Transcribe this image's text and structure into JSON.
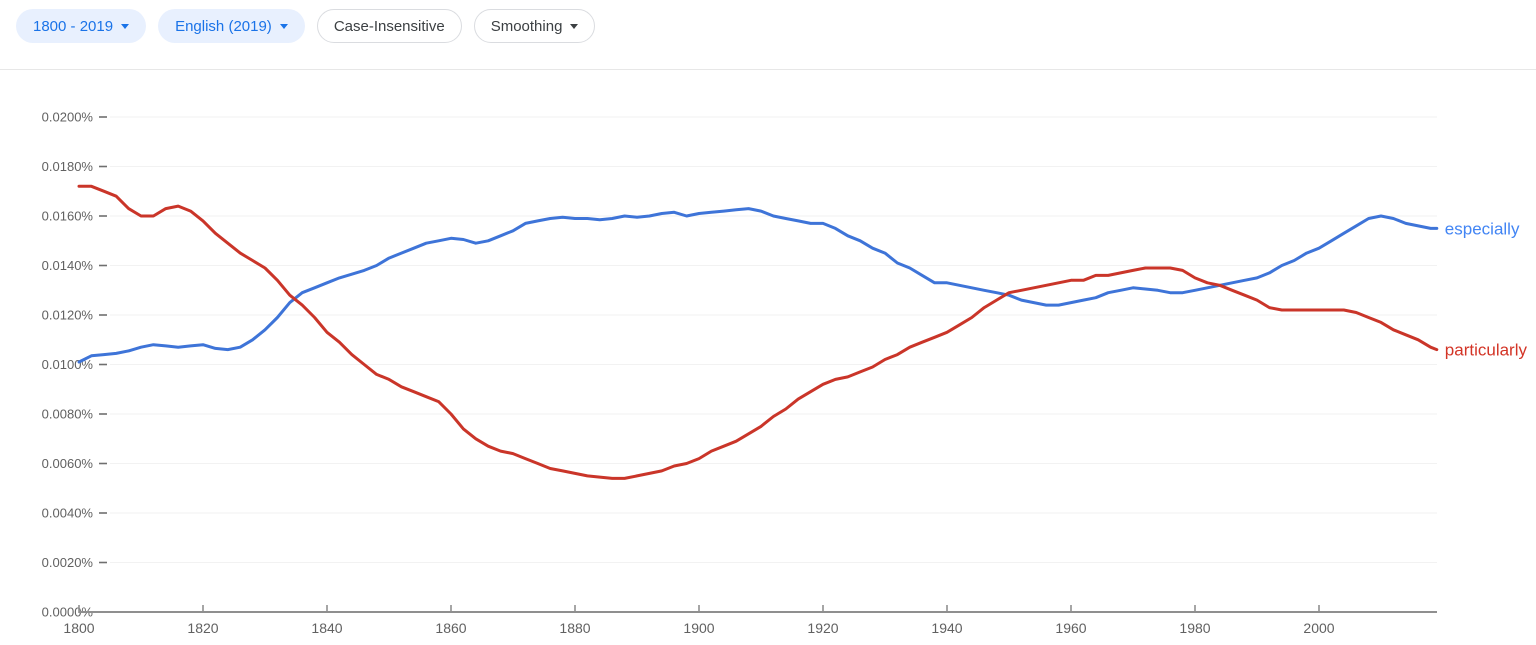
{
  "toolbar": {
    "range_button": {
      "label": "1800 - 2019"
    },
    "corpus_button": {
      "label": "English (2019)"
    },
    "case_button": {
      "label": "Case-Insensitive"
    },
    "smoothing_button": {
      "label": "Smoothing"
    }
  },
  "colors": {
    "chip_bg": "#e8f0fe",
    "chip_text": "#1a73e8",
    "outline_border": "#dadce0",
    "outline_text": "#3c4043",
    "gridline": "#f2f2f2",
    "axis_line": "#8f8f8f",
    "tick_text": "#616161",
    "especially_line": "#3e74d8",
    "especially_label": "#4285f4",
    "particularly_line": "#ca3529",
    "particularly_label": "#d33426"
  },
  "chart_data": {
    "type": "line",
    "title": "",
    "xlabel": "",
    "ylabel": "",
    "grid": true,
    "legend_position": "right-end-of-line",
    "x_range": [
      1800,
      2019
    ],
    "y_range_percent": [
      0.0,
      0.02
    ],
    "x_ticks": [
      1800,
      1820,
      1840,
      1860,
      1880,
      1900,
      1920,
      1940,
      1960,
      1980,
      2000
    ],
    "y_ticks": [
      {
        "value": 0.0,
        "label": "0.0000%"
      },
      {
        "value": 0.002,
        "label": "0.0020%"
      },
      {
        "value": 0.004,
        "label": "0.0040%"
      },
      {
        "value": 0.006,
        "label": "0.0060%"
      },
      {
        "value": 0.008,
        "label": "0.0080%"
      },
      {
        "value": 0.01,
        "label": "0.0100%"
      },
      {
        "value": 0.012,
        "label": "0.0120%"
      },
      {
        "value": 0.014,
        "label": "0.0140%"
      },
      {
        "value": 0.016,
        "label": "0.0160%"
      },
      {
        "value": 0.018,
        "label": "0.0180%"
      },
      {
        "value": 0.02,
        "label": "0.0200%"
      }
    ],
    "series": [
      {
        "name": "especially",
        "color": "#3e74d8",
        "label_color": "#4285f4",
        "points": [
          [
            1800,
            0.0101
          ],
          [
            1802,
            0.01035
          ],
          [
            1804,
            0.0104
          ],
          [
            1806,
            0.01045
          ],
          [
            1808,
            0.01055
          ],
          [
            1810,
            0.0107
          ],
          [
            1812,
            0.0108
          ],
          [
            1814,
            0.01075
          ],
          [
            1816,
            0.0107
          ],
          [
            1818,
            0.01075
          ],
          [
            1820,
            0.0108
          ],
          [
            1822,
            0.01065
          ],
          [
            1824,
            0.0106
          ],
          [
            1826,
            0.0107
          ],
          [
            1828,
            0.011
          ],
          [
            1830,
            0.0114
          ],
          [
            1832,
            0.0119
          ],
          [
            1834,
            0.0125
          ],
          [
            1836,
            0.0129
          ],
          [
            1838,
            0.0131
          ],
          [
            1840,
            0.0133
          ],
          [
            1842,
            0.0135
          ],
          [
            1844,
            0.01365
          ],
          [
            1846,
            0.0138
          ],
          [
            1848,
            0.014
          ],
          [
            1850,
            0.0143
          ],
          [
            1852,
            0.0145
          ],
          [
            1854,
            0.0147
          ],
          [
            1856,
            0.0149
          ],
          [
            1858,
            0.015
          ],
          [
            1860,
            0.0151
          ],
          [
            1862,
            0.01505
          ],
          [
            1864,
            0.0149
          ],
          [
            1866,
            0.015
          ],
          [
            1868,
            0.0152
          ],
          [
            1870,
            0.0154
          ],
          [
            1872,
            0.0157
          ],
          [
            1874,
            0.0158
          ],
          [
            1876,
            0.0159
          ],
          [
            1878,
            0.01595
          ],
          [
            1880,
            0.0159
          ],
          [
            1882,
            0.0159
          ],
          [
            1884,
            0.01585
          ],
          [
            1886,
            0.0159
          ],
          [
            1888,
            0.016
          ],
          [
            1890,
            0.01595
          ],
          [
            1892,
            0.016
          ],
          [
            1894,
            0.0161
          ],
          [
            1896,
            0.01615
          ],
          [
            1898,
            0.016
          ],
          [
            1900,
            0.0161
          ],
          [
            1902,
            0.01615
          ],
          [
            1904,
            0.0162
          ],
          [
            1906,
            0.01625
          ],
          [
            1908,
            0.0163
          ],
          [
            1910,
            0.0162
          ],
          [
            1912,
            0.016
          ],
          [
            1914,
            0.0159
          ],
          [
            1916,
            0.0158
          ],
          [
            1918,
            0.0157
          ],
          [
            1920,
            0.0157
          ],
          [
            1922,
            0.0155
          ],
          [
            1924,
            0.0152
          ],
          [
            1926,
            0.015
          ],
          [
            1928,
            0.0147
          ],
          [
            1930,
            0.0145
          ],
          [
            1932,
            0.0141
          ],
          [
            1934,
            0.0139
          ],
          [
            1936,
            0.0136
          ],
          [
            1938,
            0.0133
          ],
          [
            1940,
            0.0133
          ],
          [
            1942,
            0.0132
          ],
          [
            1944,
            0.0131
          ],
          [
            1946,
            0.013
          ],
          [
            1948,
            0.0129
          ],
          [
            1950,
            0.0128
          ],
          [
            1952,
            0.0126
          ],
          [
            1954,
            0.0125
          ],
          [
            1956,
            0.0124
          ],
          [
            1958,
            0.0124
          ],
          [
            1960,
            0.0125
          ],
          [
            1962,
            0.0126
          ],
          [
            1964,
            0.0127
          ],
          [
            1966,
            0.0129
          ],
          [
            1968,
            0.013
          ],
          [
            1970,
            0.0131
          ],
          [
            1972,
            0.01305
          ],
          [
            1974,
            0.013
          ],
          [
            1976,
            0.0129
          ],
          [
            1978,
            0.0129
          ],
          [
            1980,
            0.013
          ],
          [
            1982,
            0.0131
          ],
          [
            1984,
            0.0132
          ],
          [
            1986,
            0.0133
          ],
          [
            1988,
            0.0134
          ],
          [
            1990,
            0.0135
          ],
          [
            1992,
            0.0137
          ],
          [
            1994,
            0.014
          ],
          [
            1996,
            0.0142
          ],
          [
            1998,
            0.0145
          ],
          [
            2000,
            0.0147
          ],
          [
            2002,
            0.015
          ],
          [
            2004,
            0.0153
          ],
          [
            2006,
            0.0156
          ],
          [
            2008,
            0.0159
          ],
          [
            2010,
            0.016
          ],
          [
            2012,
            0.0159
          ],
          [
            2014,
            0.0157
          ],
          [
            2016,
            0.0156
          ],
          [
            2018,
            0.0155
          ],
          [
            2019,
            0.0155
          ]
        ]
      },
      {
        "name": "particularly",
        "color": "#ca3529",
        "label_color": "#d33426",
        "points": [
          [
            1800,
            0.0172
          ],
          [
            1802,
            0.0172
          ],
          [
            1804,
            0.017
          ],
          [
            1806,
            0.0168
          ],
          [
            1808,
            0.0163
          ],
          [
            1810,
            0.016
          ],
          [
            1812,
            0.016
          ],
          [
            1814,
            0.0163
          ],
          [
            1816,
            0.0164
          ],
          [
            1818,
            0.0162
          ],
          [
            1820,
            0.0158
          ],
          [
            1822,
            0.0153
          ],
          [
            1824,
            0.0149
          ],
          [
            1826,
            0.0145
          ],
          [
            1828,
            0.0142
          ],
          [
            1830,
            0.0139
          ],
          [
            1832,
            0.0134
          ],
          [
            1834,
            0.0128
          ],
          [
            1836,
            0.0124
          ],
          [
            1838,
            0.0119
          ],
          [
            1840,
            0.0113
          ],
          [
            1842,
            0.0109
          ],
          [
            1844,
            0.0104
          ],
          [
            1846,
            0.01
          ],
          [
            1848,
            0.0096
          ],
          [
            1850,
            0.0094
          ],
          [
            1852,
            0.0091
          ],
          [
            1854,
            0.0089
          ],
          [
            1856,
            0.0087
          ],
          [
            1858,
            0.0085
          ],
          [
            1860,
            0.008
          ],
          [
            1862,
            0.0074
          ],
          [
            1864,
            0.007
          ],
          [
            1866,
            0.0067
          ],
          [
            1868,
            0.0065
          ],
          [
            1870,
            0.0064
          ],
          [
            1872,
            0.0062
          ],
          [
            1874,
            0.006
          ],
          [
            1876,
            0.0058
          ],
          [
            1878,
            0.0057
          ],
          [
            1880,
            0.0056
          ],
          [
            1882,
            0.0055
          ],
          [
            1884,
            0.00545
          ],
          [
            1886,
            0.0054
          ],
          [
            1888,
            0.0054
          ],
          [
            1890,
            0.0055
          ],
          [
            1892,
            0.0056
          ],
          [
            1894,
            0.0057
          ],
          [
            1896,
            0.0059
          ],
          [
            1898,
            0.006
          ],
          [
            1900,
            0.0062
          ],
          [
            1902,
            0.0065
          ],
          [
            1904,
            0.0067
          ],
          [
            1906,
            0.0069
          ],
          [
            1908,
            0.0072
          ],
          [
            1910,
            0.0075
          ],
          [
            1912,
            0.0079
          ],
          [
            1914,
            0.0082
          ],
          [
            1916,
            0.0086
          ],
          [
            1918,
            0.0089
          ],
          [
            1920,
            0.0092
          ],
          [
            1922,
            0.0094
          ],
          [
            1924,
            0.0095
          ],
          [
            1926,
            0.0097
          ],
          [
            1928,
            0.0099
          ],
          [
            1930,
            0.0102
          ],
          [
            1932,
            0.0104
          ],
          [
            1934,
            0.0107
          ],
          [
            1936,
            0.0109
          ],
          [
            1938,
            0.0111
          ],
          [
            1940,
            0.0113
          ],
          [
            1942,
            0.0116
          ],
          [
            1944,
            0.0119
          ],
          [
            1946,
            0.0123
          ],
          [
            1948,
            0.0126
          ],
          [
            1950,
            0.0129
          ],
          [
            1952,
            0.013
          ],
          [
            1954,
            0.0131
          ],
          [
            1956,
            0.0132
          ],
          [
            1958,
            0.0133
          ],
          [
            1960,
            0.0134
          ],
          [
            1962,
            0.0134
          ],
          [
            1964,
            0.0136
          ],
          [
            1966,
            0.0136
          ],
          [
            1968,
            0.0137
          ],
          [
            1970,
            0.0138
          ],
          [
            1972,
            0.0139
          ],
          [
            1974,
            0.0139
          ],
          [
            1976,
            0.0139
          ],
          [
            1978,
            0.0138
          ],
          [
            1980,
            0.0135
          ],
          [
            1982,
            0.0133
          ],
          [
            1984,
            0.0132
          ],
          [
            1986,
            0.013
          ],
          [
            1988,
            0.0128
          ],
          [
            1990,
            0.0126
          ],
          [
            1992,
            0.0123
          ],
          [
            1994,
            0.0122
          ],
          [
            1996,
            0.0122
          ],
          [
            1998,
            0.0122
          ],
          [
            2000,
            0.0122
          ],
          [
            2002,
            0.0122
          ],
          [
            2004,
            0.0122
          ],
          [
            2006,
            0.0121
          ],
          [
            2008,
            0.0119
          ],
          [
            2010,
            0.0117
          ],
          [
            2012,
            0.0114
          ],
          [
            2014,
            0.0112
          ],
          [
            2016,
            0.011
          ],
          [
            2018,
            0.0107
          ],
          [
            2019,
            0.0106
          ]
        ]
      }
    ]
  }
}
